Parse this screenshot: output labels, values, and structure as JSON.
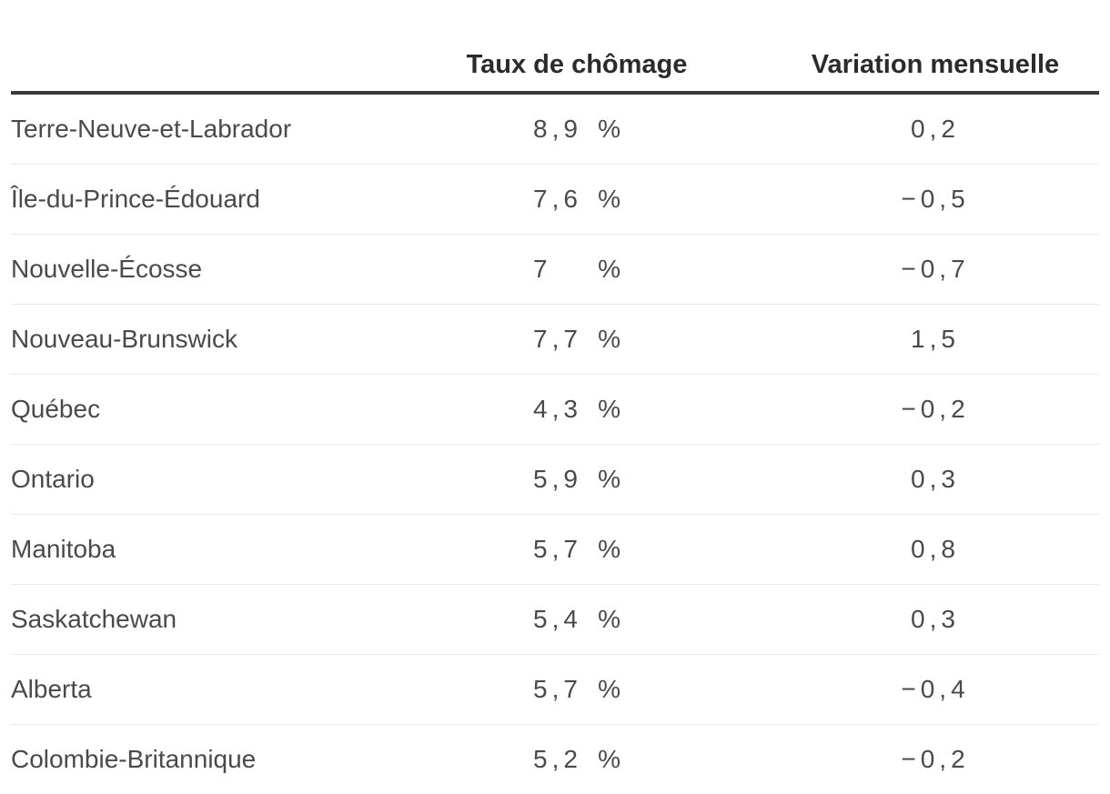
{
  "colors": {
    "background": "#ffffff",
    "header_text": "#2b2b2b",
    "header_rule": "#383838",
    "body_text": "#4a4a4a",
    "row_divider": "#e9e9e9"
  },
  "table": {
    "headers": {
      "province": "",
      "rate": "Taux de chômage",
      "change": "Variation mensuelle"
    },
    "unit": "%",
    "rows": [
      {
        "name": "Terre-Neuve-et-Labrador",
        "rate": "8,9",
        "unit": "%",
        "change": "0,2"
      },
      {
        "name": "Île-du-Prince-Édouard",
        "rate": "7,6",
        "unit": "%",
        "change": "−0,5"
      },
      {
        "name": "Nouvelle-Écosse",
        "rate": "7",
        "unit": "%",
        "change": "−0,7"
      },
      {
        "name": "Nouveau-Brunswick",
        "rate": "7,7",
        "unit": "%",
        "change": "1,5"
      },
      {
        "name": "Québec",
        "rate": "4,3",
        "unit": "%",
        "change": "−0,2"
      },
      {
        "name": "Ontario",
        "rate": "5,9",
        "unit": "%",
        "change": "0,3"
      },
      {
        "name": "Manitoba",
        "rate": "5,7",
        "unit": "%",
        "change": "0,8"
      },
      {
        "name": "Saskatchewan",
        "rate": "5,4",
        "unit": "%",
        "change": "0,3"
      },
      {
        "name": "Alberta",
        "rate": "5,7",
        "unit": "%",
        "change": "−0,4"
      },
      {
        "name": "Colombie-Britannique",
        "rate": "5,2",
        "unit": "%",
        "change": "−0,2"
      }
    ]
  },
  "chart_data": {
    "type": "table",
    "columns": [
      "",
      "Taux de chômage",
      "Variation mensuelle"
    ],
    "categories": [
      "Terre-Neuve-et-Labrador",
      "Île-du-Prince-Édouard",
      "Nouvelle-Écosse",
      "Nouveau-Brunswick",
      "Québec",
      "Ontario",
      "Manitoba",
      "Saskatchewan",
      "Alberta",
      "Colombie-Britannique"
    ],
    "series": [
      {
        "name": "Taux de chômage (%)",
        "values": [
          8.9,
          7.6,
          7,
          7.7,
          4.3,
          5.9,
          5.7,
          5.4,
          5.7,
          5.2
        ]
      },
      {
        "name": "Variation mensuelle",
        "values": [
          0.2,
          -0.5,
          -0.7,
          1.5,
          -0.2,
          0.3,
          0.8,
          0.3,
          -0.4,
          -0.2
        ]
      }
    ],
    "title": "",
    "decimal_separator": ",",
    "layout": {
      "grid": "horizontal row dividers",
      "header_rule": "thick dark line under headers"
    }
  }
}
